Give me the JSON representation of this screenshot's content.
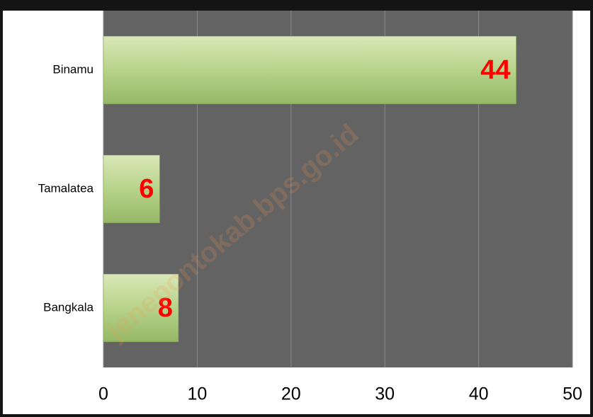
{
  "chart_data": {
    "type": "hbar",
    "categories": [
      "Binamu",
      "Tamalatea",
      "Bangkala"
    ],
    "values": [
      44,
      6,
      8
    ],
    "color": "#b7d38a",
    "label_color": "#ff0000",
    "xlim": [
      0,
      50
    ],
    "xticks": [
      0,
      10,
      20,
      30,
      40,
      50
    ],
    "grid": true,
    "watermark": "jenepontokab.bps.go.id"
  }
}
